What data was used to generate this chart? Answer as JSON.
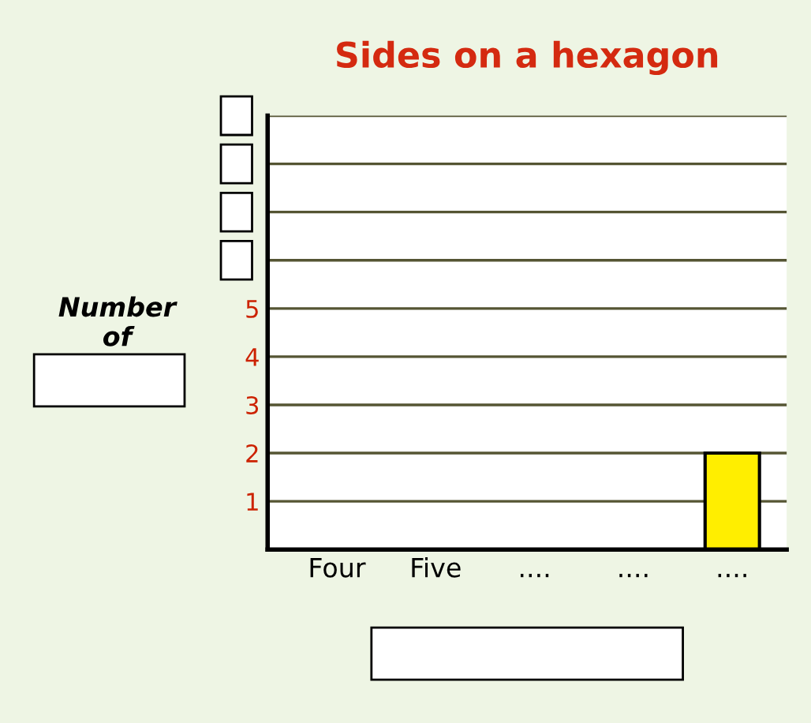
{
  "chart_data": {
    "type": "bar",
    "title": "Sides on a hexagon",
    "ylabel": "Number\nof",
    "categories": [
      "Four",
      "Five",
      "....",
      "....",
      "...."
    ],
    "values": [
      null,
      null,
      null,
      null,
      2
    ],
    "color": "#ffee00",
    "ylim": [
      0,
      9
    ],
    "yticks": [
      1,
      2,
      3,
      4,
      5,
      {
        "value": 6,
        "label": null
      },
      {
        "value": 7,
        "label": null
      },
      {
        "value": 8,
        "label": null
      },
      {
        "value": 9,
        "label": null
      }
    ],
    "grid": "y"
  }
}
